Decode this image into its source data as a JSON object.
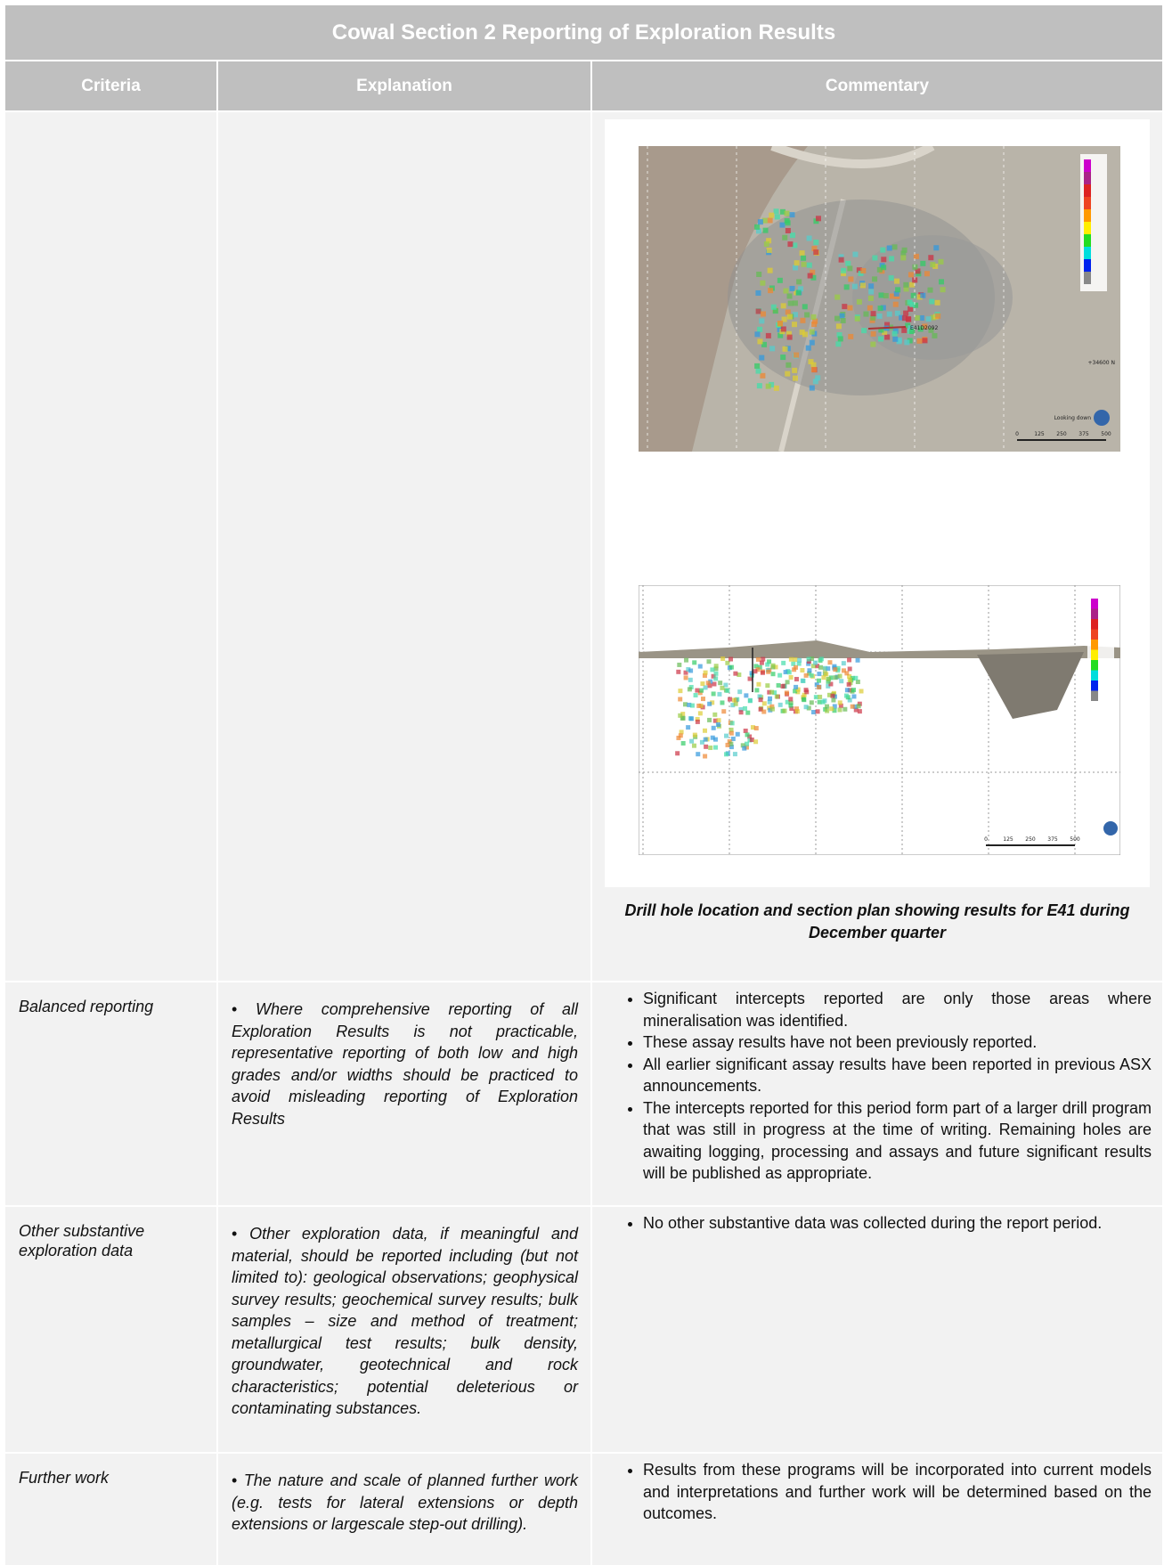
{
  "header": {
    "title": "Cowal Section 2 Reporting of Exploration Results"
  },
  "table": {
    "columns": [
      "Criteria",
      "Explanation",
      "Commentary"
    ],
    "figure": {
      "plan_view": {
        "label": "E41D2092",
        "view": "Looking down",
        "northing": "+34600 N",
        "scale": [
          "0",
          "125",
          "250",
          "375",
          "500"
        ]
      },
      "section_view": {
        "scale": [
          "0",
          "125",
          "250",
          "375",
          "500"
        ]
      },
      "caption": "Drill hole location and section plan showing results for E41 during December quarter"
    },
    "rows": [
      {
        "criteria": "Balanced reporting",
        "explanation": "Where comprehensive reporting of all Exploration Results is not practicable, representative reporting of both low and high grades and/or widths should be practiced to avoid misleading reporting of Exploration Results",
        "commentary": [
          "Significant intercepts reported are only those areas where mineralisation was identified.",
          "These assay results have not been previously reported.",
          "All earlier significant assay results have been reported in previous ASX announcements.",
          "The intercepts reported for this period form part of a larger drill program that was still in progress at the time of writing. Remaining holes are awaiting logging, processing and assays and future significant results will be published as appropriate."
        ]
      },
      {
        "criteria": "Other substantive exploration data",
        "explanation": "Other exploration data, if meaningful and material, should be reported including (but not limited to): geological observations; geophysical survey results; geochemical survey results; bulk samples – size and method of treatment; metallurgical test results; bulk density, groundwater, geotechnical and rock characteristics; potential deleterious or contaminating substances.",
        "commentary": [
          "No other substantive data was collected during the report period."
        ]
      },
      {
        "criteria": "Further work",
        "explanation": "The nature and scale of planned further work (e.g. tests for lateral extensions or depth extensions or largescale step-out drilling).",
        "commentary": [
          "Results from these programs will be incorporated into current models and interpretations and further work will be determined based on the outcomes."
        ]
      }
    ]
  }
}
